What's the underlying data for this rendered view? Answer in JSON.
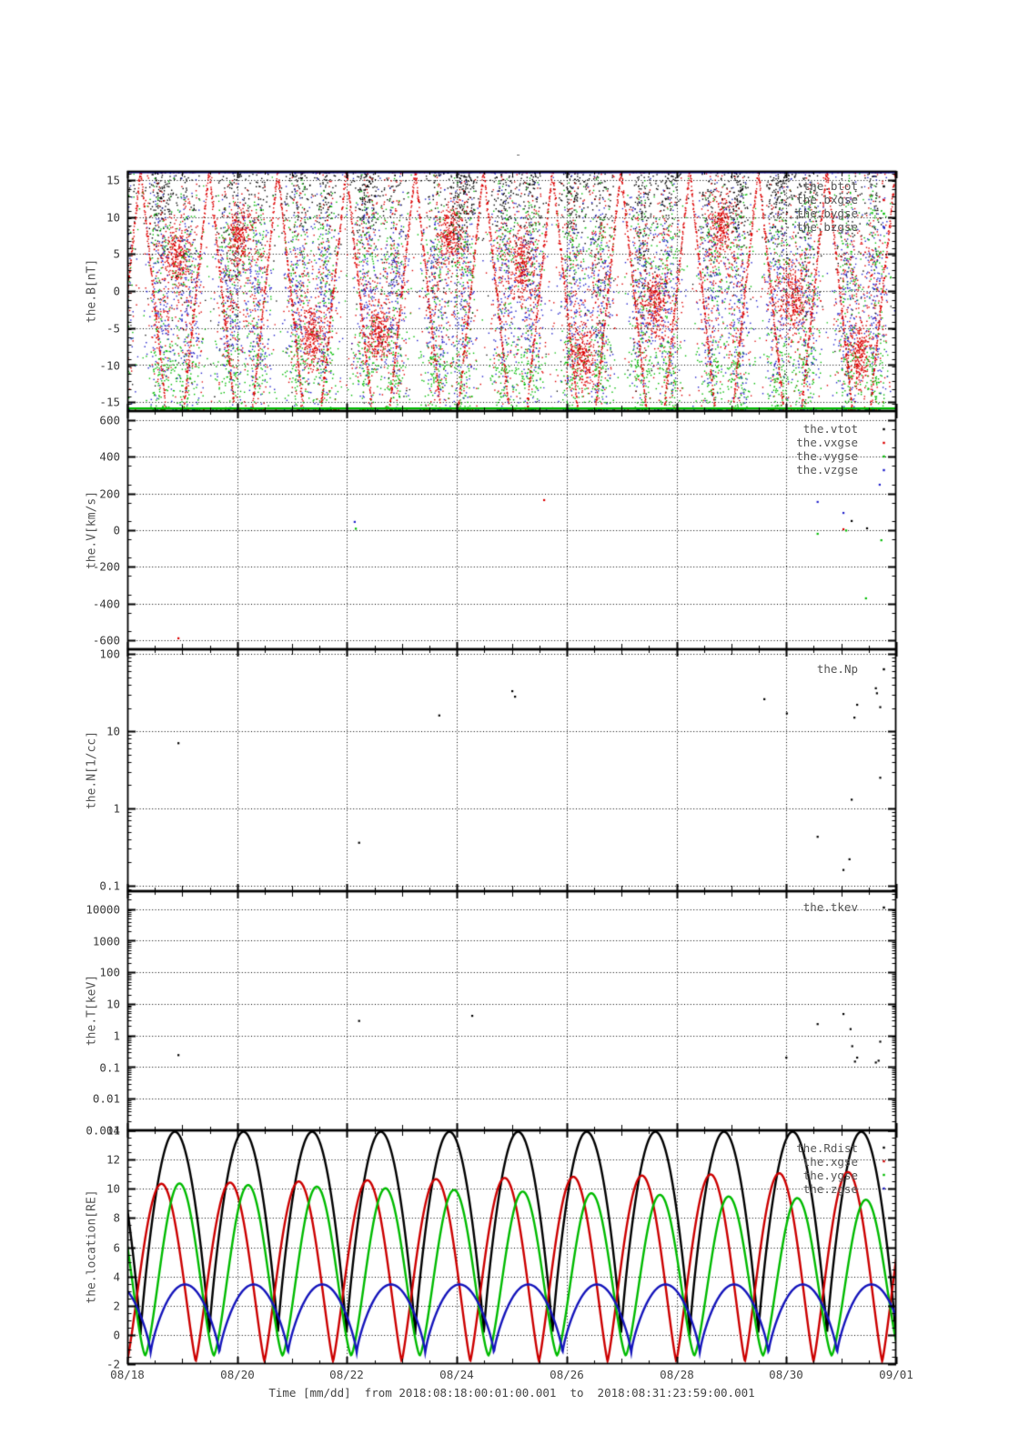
{
  "title": "-",
  "x_axis": {
    "labels": [
      "08/18",
      "08/20",
      "08/22",
      "08/24",
      "08/26",
      "08/28",
      "08/30",
      "09/01"
    ],
    "title": "Time [mm/dd]  from 2018:08:18:00:01:00.001  to  2018:08:31:23:59:00.001",
    "total_days": 14,
    "label_step_days": 2,
    "gridline_days": [
      2,
      4,
      6,
      8,
      10,
      12
    ]
  },
  "colors": {
    "black": "#000000",
    "red": "#dd0000",
    "green": "#00bb00",
    "blue": "#2222cc",
    "navy_clip": "#000080",
    "green_clip": "#00bb00",
    "legend_text": "#555555",
    "tick_text": "#3a3a3a"
  },
  "panels": [
    {
      "ylabel": "the.B[nT]",
      "legend": [
        "the.btot",
        "the.bxgse",
        "the.bygse",
        "the.bzgse"
      ]
    },
    {
      "ylabel": "the.V[km/s]",
      "legend": [
        "the.vtot",
        "the.vxgse",
        "the.vygse",
        "the.vzgse"
      ]
    },
    {
      "ylabel": "the.N[1/cc]",
      "legend": [
        "the.Np"
      ]
    },
    {
      "ylabel": "the.T[keV]",
      "legend": [
        "the.tkev"
      ]
    },
    {
      "ylabel": "the.location[RE]",
      "legend": [
        "the.Rdist",
        "the.xgse",
        "the.ygse",
        "the.zgse"
      ]
    }
  ],
  "chart_data": [
    {
      "name": "the.B[nT]",
      "type": "scatter",
      "yscale": "linear",
      "ymin": -16.2,
      "ymax": 16.2,
      "minor_step": 1,
      "yticks": [
        {
          "v": 15,
          "label": "15"
        },
        {
          "v": 10,
          "label": "10"
        },
        {
          "v": 5,
          "label": "5"
        },
        {
          "v": 0,
          "label": "0"
        },
        {
          "v": -5,
          "label": "-5"
        },
        {
          "v": -10,
          "label": "-10"
        },
        {
          "v": -15,
          "label": "-15"
        }
      ],
      "series": [
        {
          "name": "the.btot",
          "color": "#000000"
        },
        {
          "name": "the.bxgse",
          "color": "#dd0000"
        },
        {
          "name": "the.bygse",
          "color": "#00bb00"
        },
        {
          "name": "the.bzgse",
          "color": "#2222cc"
        }
      ],
      "dense_scatter": {
        "seed": 42,
        "orbit_period_days": 1.25,
        "first_perigee_day": 0.24,
        "band_offset_days": 0.38,
        "band_sigma_days": 0.13,
        "points_per_band": {
          "black": 120,
          "red": 150,
          "green": 170,
          "blue": 150
        },
        "arc_slope_nt_per_day": 70,
        "background_points_per_color": 130
      },
      "clip_lines": [
        {
          "y": 16.05,
          "color": "#000080",
          "width": 2.6
        },
        {
          "y": -15.85,
          "color": "#00bb00",
          "width": 2.2
        }
      ]
    },
    {
      "name": "the.V[km/s]",
      "type": "scatter",
      "yscale": "linear",
      "ymin": -650,
      "ymax": 650,
      "minor_step": 100,
      "yticks": [
        {
          "v": 600,
          "label": "600"
        },
        {
          "v": 400,
          "label": "400"
        },
        {
          "v": 200,
          "label": "200"
        },
        {
          "v": 0,
          "label": "0"
        },
        {
          "v": -200,
          "label": "-200"
        },
        {
          "v": -400,
          "label": "-400"
        },
        {
          "v": -600,
          "label": "-600"
        }
      ],
      "series": [
        {
          "name": "the.vtot",
          "color": "#000000"
        },
        {
          "name": "the.vxgse",
          "color": "#dd0000"
        },
        {
          "name": "the.vygse",
          "color": "#00bb00"
        },
        {
          "name": "the.vzgse",
          "color": "#2222cc"
        }
      ],
      "points": [
        {
          "day": 4.14,
          "v": 45,
          "s": 3
        },
        {
          "day": 4.16,
          "v": 8,
          "s": 2
        },
        {
          "day": 7.59,
          "v": 164,
          "s": 1
        },
        {
          "day": 12.57,
          "v": 154,
          "s": 3
        },
        {
          "day": 13.04,
          "v": 94,
          "s": 3
        },
        {
          "day": 13.19,
          "v": 50,
          "s": 0
        },
        {
          "day": 13.04,
          "v": 5,
          "s": 1
        },
        {
          "day": 13.09,
          "v": -2,
          "s": 2
        },
        {
          "day": 13.47,
          "v": 10,
          "s": 0
        },
        {
          "day": 12.57,
          "v": -20,
          "s": 2
        },
        {
          "day": 13.73,
          "v": -55,
          "s": 2
        },
        {
          "day": 13.7,
          "v": 248,
          "s": 3
        },
        {
          "day": 13.45,
          "v": -372,
          "s": 2
        },
        {
          "day": 0.93,
          "v": -590,
          "s": 1
        }
      ]
    },
    {
      "name": "the.N[1/cc]",
      "type": "scatter",
      "yscale": "log",
      "ymin": 0.085,
      "ymax": 115,
      "yticks": [
        {
          "v": 100,
          "label": "100"
        },
        {
          "v": 10,
          "label": "10"
        },
        {
          "v": 1,
          "label": "1"
        },
        {
          "v": 0.1,
          "label": "0.1"
        }
      ],
      "series": [
        {
          "name": "the.Np",
          "color": "#000000"
        }
      ],
      "points": [
        {
          "day": 0.93,
          "v": 7.0,
          "s": 0
        },
        {
          "day": 4.22,
          "v": 0.36,
          "s": 0
        },
        {
          "day": 5.68,
          "v": 16,
          "s": 0
        },
        {
          "day": 7.01,
          "v": 33,
          "s": 0
        },
        {
          "day": 7.06,
          "v": 28,
          "s": 0
        },
        {
          "day": 11.6,
          "v": 26,
          "s": 0
        },
        {
          "day": 12.01,
          "v": 17,
          "s": 0
        },
        {
          "day": 12.57,
          "v": 0.43,
          "s": 0
        },
        {
          "day": 13.04,
          "v": 0.16,
          "s": 0
        },
        {
          "day": 13.15,
          "v": 0.22,
          "s": 0
        },
        {
          "day": 13.19,
          "v": 1.3,
          "s": 0
        },
        {
          "day": 13.24,
          "v": 15,
          "s": 0
        },
        {
          "day": 13.29,
          "v": 22,
          "s": 0
        },
        {
          "day": 13.63,
          "v": 36,
          "s": 0
        },
        {
          "day": 13.65,
          "v": 31,
          "s": 0
        },
        {
          "day": 13.71,
          "v": 20.5,
          "s": 0
        },
        {
          "day": 13.71,
          "v": 2.5,
          "s": 0
        }
      ]
    },
    {
      "name": "the.T[keV]",
      "type": "scatter",
      "yscale": "log",
      "ymin": 0.001,
      "ymax": 37000,
      "yticks": [
        {
          "v": 10000,
          "label": "10000"
        },
        {
          "v": 1000,
          "label": "1000"
        },
        {
          "v": 100,
          "label": "100"
        },
        {
          "v": 10,
          "label": "10"
        },
        {
          "v": 1,
          "label": "1"
        },
        {
          "v": 0.1,
          "label": "0.1"
        },
        {
          "v": 0.01,
          "label": "0.01"
        },
        {
          "v": 0.001,
          "label": "0.001"
        }
      ],
      "series": [
        {
          "name": "the.tkev",
          "color": "#000000"
        }
      ],
      "points": [
        {
          "day": 0.93,
          "v": 0.24,
          "s": 0
        },
        {
          "day": 4.22,
          "v": 2.9,
          "s": 0
        },
        {
          "day": 6.28,
          "v": 4.2,
          "s": 0
        },
        {
          "day": 12.0,
          "v": 0.2,
          "s": 0
        },
        {
          "day": 12.57,
          "v": 2.3,
          "s": 0
        },
        {
          "day": 13.04,
          "v": 4.8,
          "s": 0
        },
        {
          "day": 13.17,
          "v": 1.6,
          "s": 0
        },
        {
          "day": 13.2,
          "v": 0.46,
          "s": 0
        },
        {
          "day": 13.25,
          "v": 0.15,
          "s": 0
        },
        {
          "day": 13.29,
          "v": 0.2,
          "s": 0
        },
        {
          "day": 13.63,
          "v": 0.14,
          "s": 0
        },
        {
          "day": 13.68,
          "v": 0.16,
          "s": 0
        },
        {
          "day": 13.71,
          "v": 0.64,
          "s": 0
        }
      ]
    },
    {
      "name": "the.location[RE]",
      "type": "line",
      "yscale": "linear",
      "ymin": -2,
      "ymax": 14,
      "minor_step": 0.5,
      "yticks": [
        {
          "v": 14,
          "label": "14"
        },
        {
          "v": 12,
          "label": "12"
        },
        {
          "v": 10,
          "label": "10"
        },
        {
          "v": 8,
          "label": "8"
        },
        {
          "v": 6,
          "label": "6"
        },
        {
          "v": 4,
          "label": "4"
        },
        {
          "v": 2,
          "label": "2"
        },
        {
          "v": 0,
          "label": "0"
        },
        {
          "v": -2,
          "label": "-2"
        }
      ],
      "orbit_period_days": 1.25,
      "first_perigee_day": 0.24,
      "series": [
        {
          "name": "the.Rdist",
          "color": "#000000",
          "min": 0.0,
          "peak_start": 13.9,
          "peak_end": 13.9,
          "exponent": 0.85,
          "phase_shift": 0
        },
        {
          "name": "the.xgse",
          "color": "#cc0000",
          "min": -1.8,
          "peak_start": 10.3,
          "peak_end": 11.2,
          "exponent": 1.2,
          "phase_shift": -0.196
        },
        {
          "name": "the.ygse",
          "color": "#00bb00",
          "min": -1.4,
          "peak_start": 10.45,
          "peak_end": 9.2,
          "exponent": 1.45,
          "phase_shift": 0.068
        },
        {
          "name": "the.zgse",
          "color": "#1515bb",
          "min": -1.25,
          "peak_start": 3.45,
          "peak_end": 3.45,
          "exponent": 0.75,
          "phase_shift": 0.148
        }
      ]
    }
  ]
}
